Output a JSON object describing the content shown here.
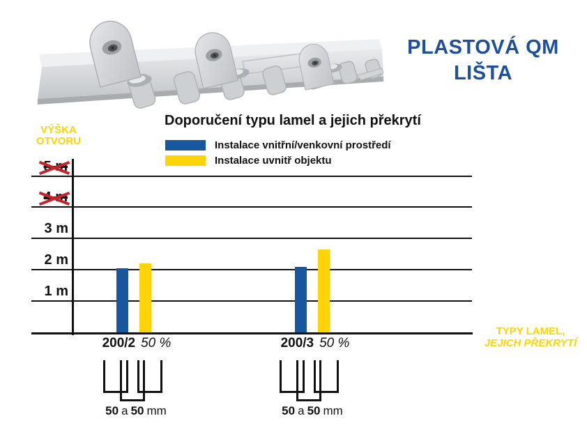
{
  "header": {
    "title_line1": "PLASTOVÁ QM",
    "title_line2": "LIŠTA"
  },
  "colors": {
    "title_blue": "#1e4f9c",
    "bar_blue": "#16579d",
    "bar_yellow": "#ffd406",
    "label_yellow": "#ffd400",
    "cross_red": "#c5232b",
    "line_black": "#111111"
  },
  "chart_data": {
    "type": "bar",
    "title": "Doporučení typu lamel a jejich překrytí",
    "ylabel": "VÝŠKA OTVORU",
    "ylabel_lines": [
      "VÝŠKA",
      "OTVORU"
    ],
    "xlabel": "TYPY LAMEL, JEJICH PŘEKRYTÍ",
    "xlabel_lines": [
      "TYPY LAMEL,",
      "JEJICH PŘEKRYTÍ"
    ],
    "y_unit": "m",
    "ylim": [
      0,
      5
    ],
    "grid": true,
    "legend_position": "top",
    "y_ticks": [
      {
        "value": 5,
        "label": "5 m",
        "crossed_out": true
      },
      {
        "value": 4,
        "label": "4 m",
        "crossed_out": true
      },
      {
        "value": 3,
        "label": "3 m",
        "crossed_out": false
      },
      {
        "value": 2,
        "label": "2 m",
        "crossed_out": false
      },
      {
        "value": 1,
        "label": "1 m",
        "crossed_out": false
      }
    ],
    "categories": [
      {
        "code": "200/2",
        "overlap": "50 %"
      },
      {
        "code": "200/3",
        "overlap": "50 %"
      }
    ],
    "series": [
      {
        "name": "Instalace vnitřní/venkovní prostředí",
        "color_key": "bar_blue",
        "values_m": [
          2.05,
          2.1
        ]
      },
      {
        "name": "Instalace uvnitř objektu",
        "color_key": "bar_yellow",
        "values_m": [
          2.2,
          2.65
        ]
      }
    ],
    "overlap_note": {
      "bold1": "50",
      "mid": "a",
      "bold2": "50",
      "unit": "mm"
    }
  }
}
